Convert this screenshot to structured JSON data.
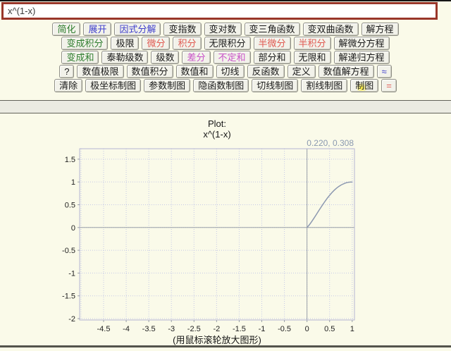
{
  "input": {
    "value": "x^(1-x)"
  },
  "colors": {
    "input_border": "#993629",
    "green_button_text": "#2e7d2e",
    "blue_button_text": "#4040cc",
    "red_button_text": "#e05a52",
    "magenta_button_text": "#c850c8",
    "click_highlight": "#ffee28",
    "curve": "#8c98b0",
    "grid": "#c4c8e8",
    "axis": "#9aa0a8",
    "frame": "#b4b4d2",
    "readout": "#8a99b0"
  },
  "toolbar": {
    "rows": [
      {
        "buttons": [
          {
            "name": "simplify",
            "label": "简化",
            "color": "green"
          },
          {
            "name": "expand",
            "label": "展开",
            "color": "blue"
          },
          {
            "name": "factor",
            "label": "因式分解",
            "color": "blue"
          },
          {
            "name": "change-exponents",
            "label": "变指数",
            "color": "black"
          },
          {
            "name": "change-logarithms",
            "label": "变对数",
            "color": "black"
          },
          {
            "name": "change-trig",
            "label": "变三角函数",
            "color": "black"
          },
          {
            "name": "change-hyperbolic",
            "label": "变双曲函数",
            "color": "black"
          },
          {
            "name": "solve-equation",
            "label": "解方程",
            "color": "black"
          }
        ]
      },
      {
        "buttons": [
          {
            "name": "convert-to-integral",
            "label": "变成积分",
            "color": "green"
          },
          {
            "name": "limit",
            "label": "极限",
            "color": "black"
          },
          {
            "name": "differentiate",
            "label": "微分",
            "color": "red"
          },
          {
            "name": "integrate",
            "label": "积分",
            "color": "red"
          },
          {
            "name": "infinite-integral",
            "label": "无限积分",
            "color": "black"
          },
          {
            "name": "semi-differentiate",
            "label": "半微分",
            "color": "red"
          },
          {
            "name": "semi-integrate",
            "label": "半积分",
            "color": "red"
          },
          {
            "name": "solve-differential-equation",
            "label": "解微分方程",
            "color": "black"
          }
        ]
      },
      {
        "buttons": [
          {
            "name": "convert-to-sum",
            "label": "变成和",
            "color": "green"
          },
          {
            "name": "taylor-series",
            "label": "泰勒级数",
            "color": "black"
          },
          {
            "name": "series",
            "label": "级数",
            "color": "black"
          },
          {
            "name": "difference",
            "label": "差分",
            "color": "magenta"
          },
          {
            "name": "indefinite-sum",
            "label": "不定和",
            "color": "magenta"
          },
          {
            "name": "partial-sum",
            "label": "部分和",
            "color": "black"
          },
          {
            "name": "infinite-sum",
            "label": "无限和",
            "color": "black"
          },
          {
            "name": "solve-recurrence",
            "label": "解递归方程",
            "color": "black"
          }
        ]
      },
      {
        "buttons": [
          {
            "name": "help",
            "label": "?",
            "color": "black"
          },
          {
            "name": "numeric-limit",
            "label": "数值极限",
            "color": "black"
          },
          {
            "name": "numeric-integral",
            "label": "数值积分",
            "color": "black"
          },
          {
            "name": "numeric-sum",
            "label": "数值和",
            "color": "black"
          },
          {
            "name": "tangent",
            "label": "切线",
            "color": "black"
          },
          {
            "name": "inverse-function",
            "label": "反函数",
            "color": "black"
          },
          {
            "name": "definition",
            "label": "定义",
            "color": "black"
          },
          {
            "name": "numeric-solve-equation",
            "label": "数值解方程",
            "color": "black"
          },
          {
            "name": "approximate",
            "label": "≈",
            "color": "blue"
          }
        ]
      },
      {
        "buttons": [
          {
            "name": "clear",
            "label": "清除",
            "color": "black"
          },
          {
            "name": "polar-plot",
            "label": "极坐标制图",
            "color": "black"
          },
          {
            "name": "parametric-plot",
            "label": "参数制图",
            "color": "black"
          },
          {
            "name": "implicit-plot",
            "label": "隐函数制图",
            "color": "black"
          },
          {
            "name": "tangent-plot",
            "label": "切线制图",
            "color": "black"
          },
          {
            "name": "secant-plot",
            "label": "割线制图",
            "color": "black"
          },
          {
            "name": "plot",
            "label": "制图",
            "color": "black",
            "highlight": true
          },
          {
            "name": "equals",
            "label": "=",
            "color": "red"
          }
        ]
      }
    ]
  },
  "chart_data": {
    "type": "line",
    "title": "Plot:",
    "subtitle": "x^(1-x)",
    "cursor_readout": "0.220, 0.308",
    "caption": "(用鼠标滚轮放大图形)",
    "xlim": [
      -5.03,
      1.05
    ],
    "ylim": [
      -2.03,
      1.73
    ],
    "grid": true,
    "grid_step": 0.5,
    "xticks": [
      -4.5,
      -4,
      -3.5,
      -3,
      -2.5,
      -2,
      -1.5,
      -1,
      -0.5,
      0,
      0.5,
      1
    ],
    "yticks": [
      1.5,
      1,
      0.5,
      0,
      -0.5,
      -1,
      -1.5,
      -2
    ],
    "series": [
      {
        "name": "x^(1-x)",
        "x": [
          0,
          0.05,
          0.1,
          0.15,
          0.2,
          0.25,
          0.3,
          0.35,
          0.4,
          0.45,
          0.5,
          0.55,
          0.6,
          0.65,
          0.7,
          0.75,
          0.8,
          0.85,
          0.9,
          0.95,
          1
        ],
        "y": [
          0,
          0.058,
          0.126,
          0.199,
          0.276,
          0.354,
          0.43,
          0.505,
          0.577,
          0.645,
          0.707,
          0.764,
          0.815,
          0.86,
          0.899,
          0.931,
          0.956,
          0.976,
          0.99,
          0.997,
          1
        ]
      }
    ]
  }
}
